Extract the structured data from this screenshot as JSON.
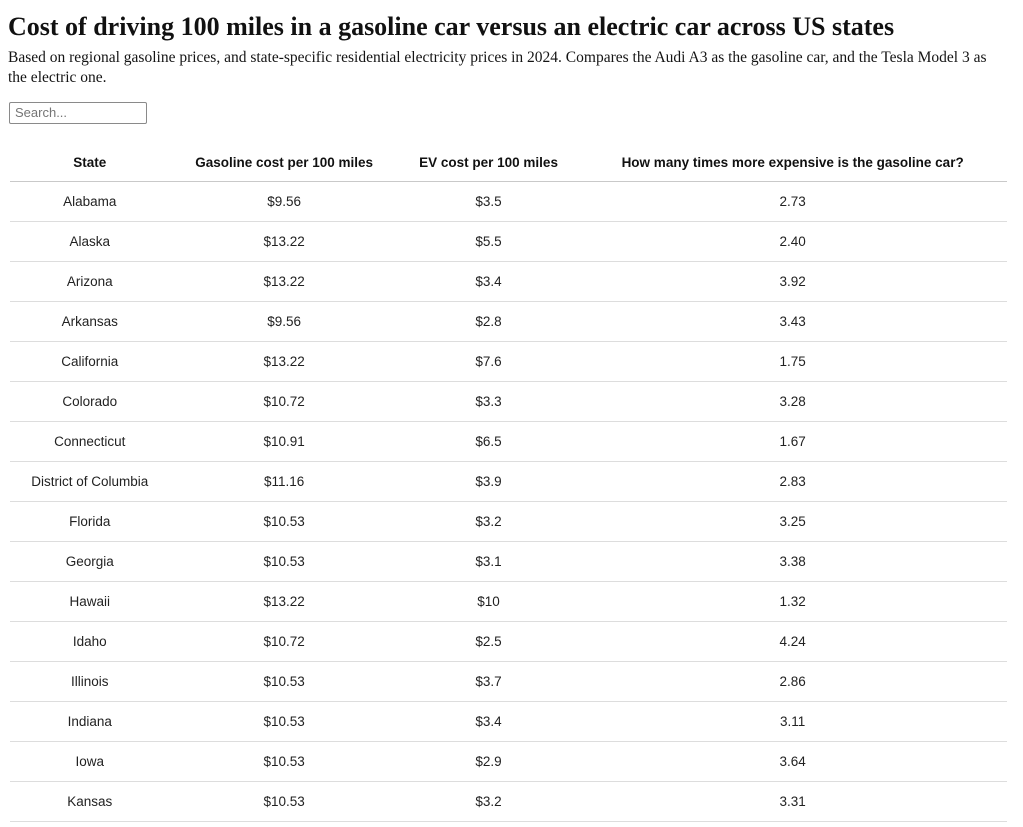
{
  "page": {
    "title": "Cost of driving 100 miles in a gasoline car versus an electric car across US states",
    "subtitle": "Based on regional gasoline prices, and state-specific residential electricity prices in 2024. Compares the Audi A3 as the gasoline car, and the Tesla Model 3 as the electric one."
  },
  "search": {
    "placeholder": "Search..."
  },
  "table": {
    "columns": [
      "State",
      "Gasoline cost per 100 miles",
      "EV cost per 100 miles",
      "How many times more expensive is the gasoline car?"
    ],
    "rows": [
      [
        "Alabama",
        "$9.56",
        "$3.5",
        "2.73"
      ],
      [
        "Alaska",
        "$13.22",
        "$5.5",
        "2.40"
      ],
      [
        "Arizona",
        "$13.22",
        "$3.4",
        "3.92"
      ],
      [
        "Arkansas",
        "$9.56",
        "$2.8",
        "3.43"
      ],
      [
        "California",
        "$13.22",
        "$7.6",
        "1.75"
      ],
      [
        "Colorado",
        "$10.72",
        "$3.3",
        "3.28"
      ],
      [
        "Connecticut",
        "$10.91",
        "$6.5",
        "1.67"
      ],
      [
        "District of Columbia",
        "$11.16",
        "$3.9",
        "2.83"
      ],
      [
        "Florida",
        "$10.53",
        "$3.2",
        "3.25"
      ],
      [
        "Georgia",
        "$10.53",
        "$3.1",
        "3.38"
      ],
      [
        "Hawaii",
        "$13.22",
        "$10",
        "1.32"
      ],
      [
        "Idaho",
        "$10.72",
        "$2.5",
        "4.24"
      ],
      [
        "Illinois",
        "$10.53",
        "$3.7",
        "2.86"
      ],
      [
        "Indiana",
        "$10.53",
        "$3.4",
        "3.11"
      ],
      [
        "Iowa",
        "$10.53",
        "$2.9",
        "3.64"
      ],
      [
        "Kansas",
        "$10.53",
        "$3.2",
        "3.31"
      ]
    ]
  }
}
